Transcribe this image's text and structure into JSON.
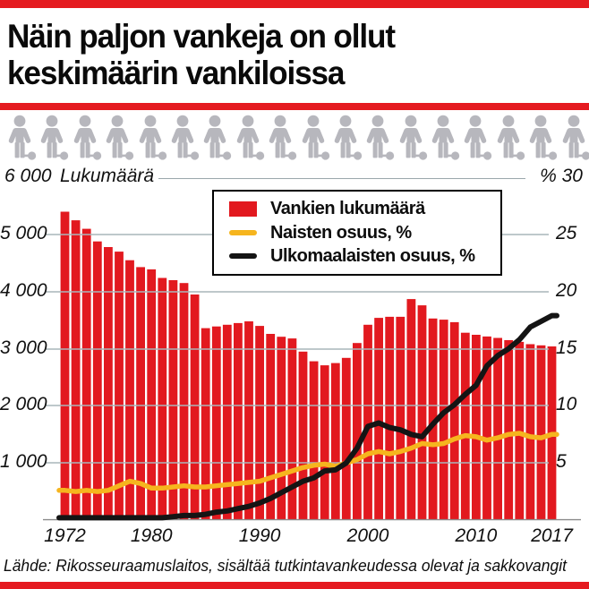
{
  "header": {
    "title_line1": "Näin paljon vankeja on ollut",
    "title_line2": "keskimäärin vankiloissa"
  },
  "pictogram": {
    "icon": "prisoner-ball-chain-icon",
    "count": 18
  },
  "axes": {
    "left_header": "6 000",
    "left_axis_title": "Lukumäärä",
    "right_header": "% 30",
    "left_ticks": [
      "5 000",
      "4 000",
      "3 000",
      "2 000",
      "1 000"
    ],
    "right_ticks": [
      "25",
      "20",
      "15",
      "10",
      "5"
    ],
    "x_ticks": [
      "1972",
      "1980",
      "1990",
      "2000",
      "2010",
      "2017"
    ]
  },
  "legend": {
    "items": [
      {
        "swatch": "bar",
        "color": "#e2191f",
        "label": "Vankien lukumäärä"
      },
      {
        "swatch": "line",
        "color": "#f6b51e",
        "label": "Naisten osuus, %"
      },
      {
        "swatch": "line",
        "color": "#141414",
        "label": "Ulkomaalaisten osuus, %"
      }
    ]
  },
  "chart_data": {
    "type": "bar",
    "title": "Näin paljon vankeja on ollut keskimäärin vankiloissa",
    "x": [
      1972,
      1973,
      1974,
      1975,
      1976,
      1977,
      1978,
      1979,
      1980,
      1981,
      1982,
      1983,
      1984,
      1985,
      1986,
      1987,
      1988,
      1989,
      1990,
      1991,
      1992,
      1993,
      1994,
      1995,
      1996,
      1997,
      1998,
      1999,
      2000,
      2001,
      2002,
      2003,
      2004,
      2005,
      2006,
      2007,
      2008,
      2009,
      2010,
      2011,
      2012,
      2013,
      2014,
      2015,
      2016,
      2017
    ],
    "series": [
      {
        "name": "Vankien lukumäärä",
        "type": "bar",
        "axis": "left",
        "color": "#e2191f",
        "values": [
          5400,
          5250,
          5100,
          4880,
          4780,
          4700,
          4550,
          4430,
          4390,
          4240,
          4200,
          4150,
          3950,
          3360,
          3390,
          3420,
          3450,
          3480,
          3400,
          3260,
          3210,
          3180,
          2950,
          2780,
          2710,
          2750,
          2840,
          3100,
          3420,
          3540,
          3560,
          3560,
          3870,
          3760,
          3530,
          3510,
          3465,
          3280,
          3245,
          3215,
          3190,
          3150,
          3120,
          3080,
          3060,
          3040
        ]
      },
      {
        "name": "Naisten osuus, %",
        "type": "line",
        "axis": "right",
        "color": "#f6b51e",
        "values": [
          2.6,
          2.5,
          2.6,
          2.5,
          2.6,
          3.0,
          3.4,
          3.2,
          2.8,
          2.8,
          2.9,
          3.0,
          2.9,
          2.9,
          3.0,
          3.1,
          3.2,
          3.3,
          3.4,
          3.7,
          4.0,
          4.3,
          4.6,
          4.8,
          4.9,
          4.7,
          5.0,
          5.3,
          5.8,
          6.0,
          5.8,
          6.0,
          6.3,
          6.7,
          6.6,
          6.7,
          7.1,
          7.4,
          7.3,
          7.0,
          7.2,
          7.5,
          7.6,
          7.3,
          7.2,
          7.5
        ]
      },
      {
        "name": "Ulkomaalaisten osuus, %",
        "type": "line",
        "axis": "right",
        "color": "#141414",
        "values": [
          0.2,
          0.2,
          0.2,
          0.2,
          0.2,
          0.2,
          0.2,
          0.2,
          0.2,
          0.2,
          0.3,
          0.4,
          0.4,
          0.5,
          0.7,
          0.8,
          1.0,
          1.2,
          1.5,
          1.9,
          2.4,
          2.9,
          3.4,
          3.7,
          4.3,
          4.4,
          5.0,
          6.3,
          8.2,
          8.5,
          8.1,
          7.9,
          7.5,
          7.3,
          8.4,
          9.4,
          10.1,
          11.0,
          11.8,
          13.5,
          14.4,
          15.0,
          15.8,
          16.9,
          17.4,
          17.9
        ]
      }
    ],
    "left_axis": {
      "label": "Lukumäärä",
      "min": 0,
      "max": 6000,
      "tick_step": 1000
    },
    "right_axis": {
      "label": "%",
      "min": 0,
      "max": 30,
      "tick_step": 5
    },
    "grid": true,
    "legend_position": "top-center"
  },
  "footer": {
    "source": "Lähde: Rikosseuraamuslaitos, sisältää tutkintavankeudessa olevat ja sakkovangit"
  },
  "colors": {
    "bar_red": "#e2191f",
    "rule_red": "#e51b20",
    "women_line_yellow": "#f6b51e",
    "foreigners_line_black": "#141414",
    "icon_gray": "#b7b7bd",
    "gridline": "#a9b6ba"
  }
}
